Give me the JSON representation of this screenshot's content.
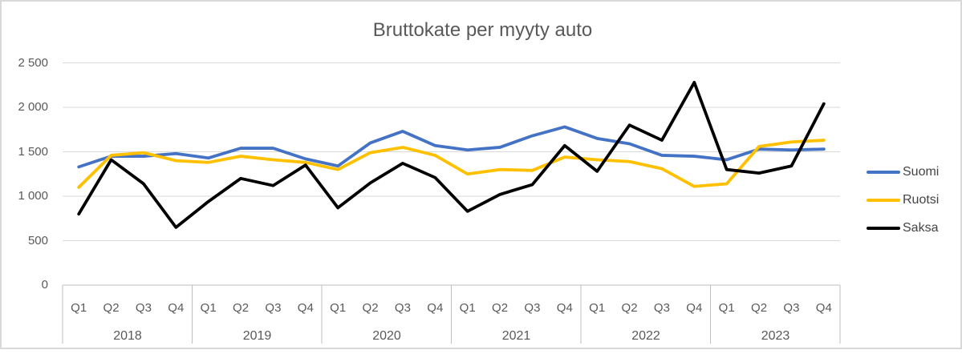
{
  "chart": {
    "title": "Bruttokate per myyty auto"
  },
  "chart_data": {
    "type": "line",
    "title": "Bruttokate per myyty auto",
    "x_axis": {
      "years": [
        "2018",
        "2019",
        "2020",
        "2021",
        "2022",
        "2023"
      ],
      "quarters_per_year": [
        "Q1",
        "Q2",
        "Q3",
        "Q4"
      ]
    },
    "y_axis": {
      "min": 0,
      "max": 2500,
      "tick_step": 500,
      "tick_values": [
        0,
        500,
        1000,
        1500,
        2000,
        2500
      ],
      "tick_labels": [
        "0",
        "500",
        "1 000",
        "1 500",
        "2 000",
        "2 500"
      ]
    },
    "grid": true,
    "legend_position": "right",
    "series": [
      {
        "name": "Suomi",
        "color": "#4472C4",
        "values": [
          1330,
          1450,
          1450,
          1480,
          1430,
          1540,
          1540,
          1420,
          1340,
          1600,
          1730,
          1570,
          1520,
          1550,
          1680,
          1780,
          1650,
          1590,
          1460,
          1450,
          1410,
          1530,
          1520,
          1530
        ]
      },
      {
        "name": "Ruotsi",
        "color": "#FFC000",
        "values": [
          1100,
          1460,
          1490,
          1400,
          1380,
          1450,
          1410,
          1380,
          1300,
          1490,
          1550,
          1460,
          1250,
          1300,
          1290,
          1440,
          1410,
          1390,
          1310,
          1110,
          1140,
          1560,
          1610,
          1630
        ]
      },
      {
        "name": "Saksa",
        "color": "#000000",
        "values": [
          800,
          1410,
          1140,
          650,
          940,
          1200,
          1120,
          1350,
          870,
          1150,
          1370,
          1210,
          830,
          1020,
          1130,
          1570,
          1280,
          1800,
          1630,
          2280,
          1300,
          1260,
          1340,
          2040
        ]
      }
    ],
    "style_colors": {
      "gridline": "#d9d9d9",
      "axis_line": "#bfbfbf",
      "text": "#595959",
      "border": "#d9d9d9"
    }
  }
}
